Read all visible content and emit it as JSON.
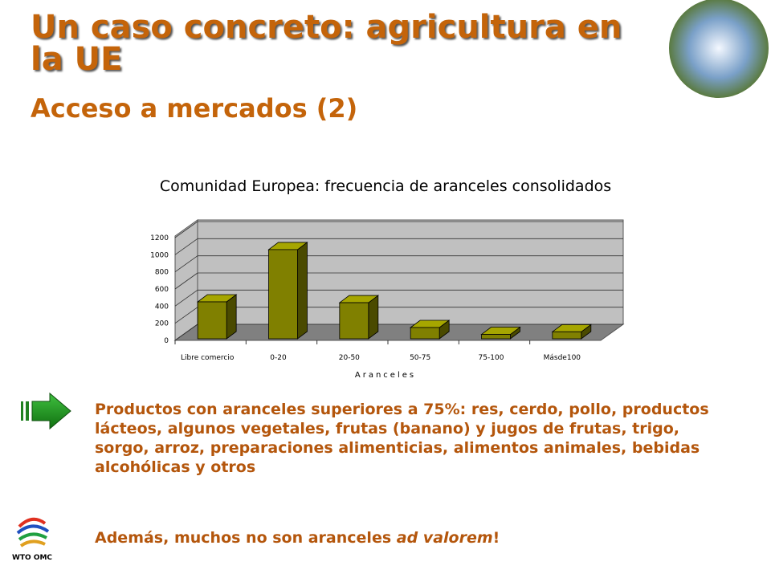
{
  "header": {
    "title": "Un caso concreto: agricultura en la UE",
    "subtitle": "Acceso a mercados (2)"
  },
  "chart_data": {
    "type": "bar3d",
    "title": "Comunidad Europea: frecuencia de aranceles consolidados",
    "x_label": "Aranceles",
    "categories": [
      "Libre comercio",
      "0-20",
      "20-50",
      "50-75",
      "75-100",
      "Másde100"
    ],
    "values": [
      450,
      1060,
      440,
      150,
      70,
      100
    ],
    "color": "#808000",
    "ylim": [
      0,
      1200
    ],
    "yticks": [
      0,
      200,
      400,
      600,
      800,
      1000,
      1200
    ],
    "grid": true
  },
  "bullets": [
    {
      "text": "Productos con aranceles superiores a 75%: res, cerdo, pollo, productos lácteos, algunos vegetales, frutas (banano) y jugos de frutas, trigo, sorgo, arroz, preparaciones alimenticias, alimentos animales, bebidas alcohólicas y otros"
    },
    {
      "text": "Además, muchos no son aranceles ",
      "emphasis": "ad valorem",
      "end": "!"
    }
  ],
  "logo": {
    "text": "WTO OMC"
  }
}
